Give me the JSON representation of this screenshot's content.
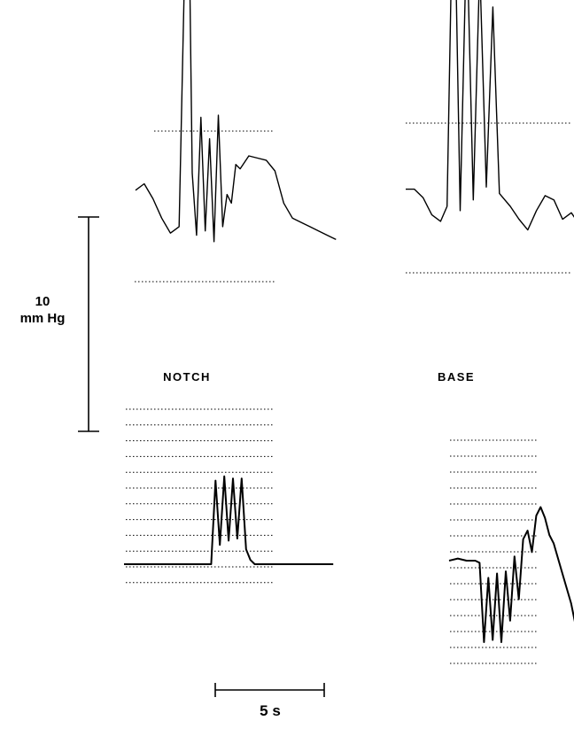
{
  "scale_bars": {
    "pressure_value": "10",
    "pressure_unit": "mm Hg",
    "time_label": "5 s"
  },
  "panels": {
    "notch_label": "NOTCH",
    "base_label": "BASE"
  },
  "chart_data": {
    "type": "line",
    "title": "",
    "xlabel": "",
    "ylabel": "",
    "grid": false,
    "legend": "none",
    "units": {
      "x": "s",
      "y": "mm Hg"
    },
    "scale": {
      "pressure_bar_mmHg": 10,
      "time_bar_s": 5
    },
    "panels": [
      {
        "name": "NOTCH",
        "traces": [
          {
            "id": "notch-upper",
            "x": [
              0,
              0.4,
              0.8,
              1.2,
              1.6,
              2.0,
              2.4,
              2.6,
              2.8,
              3.0,
              3.2,
              3.4,
              3.6,
              3.8,
              4.0,
              4.2,
              4.4,
              4.6,
              4.8,
              5.2,
              5.6,
              6.0,
              6.4,
              6.8,
              7.2,
              7.6,
              8.0,
              8.4,
              8.8,
              9.2
            ],
            "y": [
              2.2,
              2.5,
              1.8,
              0.9,
              0.2,
              0.5,
              19.5,
              3.0,
              0.1,
              5.6,
              0.3,
              4.6,
              -0.2,
              5.7,
              0.5,
              2.0,
              1.6,
              3.4,
              3.2,
              3.8,
              3.7,
              3.6,
              3.1,
              1.6,
              0.9,
              0.7,
              0.5,
              0.3,
              0.1,
              -0.1
            ]
          },
          {
            "id": "notch-lower",
            "x": [
              0,
              0.8,
              1.6,
              2.4,
              3.2,
              3.8,
              4.0,
              4.2,
              4.4,
              4.6,
              4.8,
              5.0,
              5.2,
              5.4,
              5.6,
              5.8,
              6.0,
              6.2,
              6.6,
              7.2,
              8.0,
              8.8,
              9.6
            ],
            "y": [
              0,
              0,
              0,
              0,
              0,
              0,
              0,
              3.9,
              0.9,
              4.1,
              1.1,
              4.0,
              1.2,
              4.0,
              0.7,
              0.2,
              0,
              0,
              0,
              0,
              0,
              0,
              0
            ]
          }
        ]
      },
      {
        "name": "BASE",
        "traces": [
          {
            "id": "base-upper",
            "x": [
              0,
              0.4,
              0.8,
              1.2,
              1.6,
              1.9,
              2.2,
              2.5,
              2.8,
              3.1,
              3.4,
              3.7,
              4.0,
              4.3,
              4.8,
              5.2,
              5.6,
              6.0,
              6.4,
              6.8,
              7.2,
              7.6,
              8.0,
              8.4,
              8.8,
              9.2,
              9.6,
              10.0
            ],
            "y": [
              2.0,
              2.0,
              1.6,
              0.8,
              0.5,
              1.2,
              18.0,
              1.0,
              14.2,
              1.5,
              12.4,
              2.1,
              10.5,
              1.8,
              1.2,
              0.6,
              0.1,
              1.0,
              1.7,
              1.5,
              0.6,
              0.9,
              0.3,
              0.1,
              -0.1,
              -0.2,
              0,
              0.2
            ]
          },
          {
            "id": "base-lower",
            "x": [
              0,
              0.4,
              0.8,
              1.2,
              1.4,
              1.6,
              1.8,
              2.0,
              2.2,
              2.4,
              2.6,
              2.8,
              3.0,
              3.2,
              3.4,
              3.6,
              3.8,
              4.0,
              4.2,
              4.4,
              4.6,
              4.8,
              5.2,
              5.6,
              6.0,
              6.4
            ],
            "y": [
              0,
              0.1,
              0,
              0,
              -0.1,
              -3.8,
              -0.8,
              -3.7,
              -0.6,
              -3.8,
              -0.5,
              -2.8,
              0.2,
              -1.8,
              1.0,
              1.4,
              0.4,
              2.1,
              2.5,
              2.0,
              1.2,
              0.8,
              -0.6,
              -2.0,
              -4.0,
              -5.6
            ]
          }
        ]
      }
    ]
  }
}
